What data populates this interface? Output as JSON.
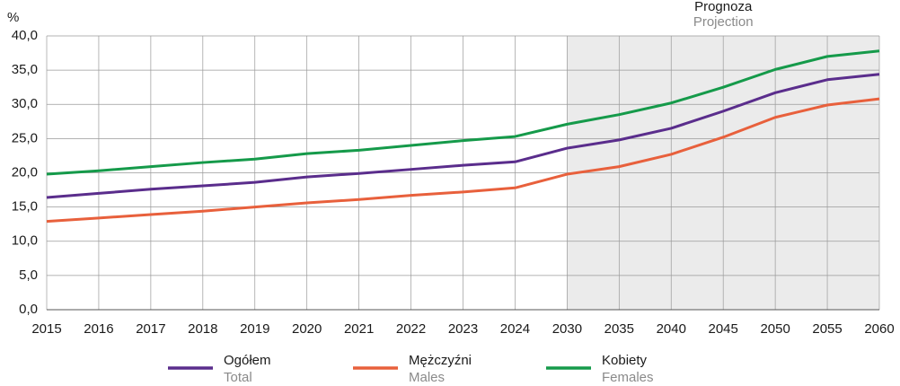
{
  "chart_data": {
    "type": "line",
    "y_label": "%",
    "categories": [
      "2015",
      "2016",
      "2017",
      "2018",
      "2019",
      "2020",
      "2021",
      "2022",
      "2023",
      "2024",
      "2030",
      "2035",
      "2040",
      "2045",
      "2050",
      "2055",
      "2060"
    ],
    "series": [
      {
        "name": "Ogółem",
        "name_en": "Total",
        "color": "#5a2d8c",
        "values": [
          16.4,
          17.0,
          17.6,
          18.1,
          18.6,
          19.4,
          19.9,
          20.5,
          21.1,
          21.6,
          23.6,
          24.8,
          26.5,
          29.0,
          31.7,
          33.6,
          34.4
        ]
      },
      {
        "name": "Mężczyźni",
        "name_en": "Males",
        "color": "#e8603c",
        "values": [
          12.9,
          13.4,
          13.9,
          14.4,
          15.0,
          15.6,
          16.1,
          16.7,
          17.2,
          17.8,
          19.8,
          20.9,
          22.7,
          25.2,
          28.1,
          29.9,
          30.8
        ]
      },
      {
        "name": "Kobiety",
        "name_en": "Females",
        "color": "#159a4a",
        "values": [
          19.8,
          20.3,
          20.9,
          21.5,
          22.0,
          22.8,
          23.3,
          24.0,
          24.7,
          25.3,
          27.1,
          28.5,
          30.2,
          32.5,
          35.1,
          37.0,
          37.8
        ]
      }
    ],
    "ylim": [
      0,
      40
    ],
    "yticks": [
      {
        "value": 0,
        "label": "0,0"
      },
      {
        "value": 5,
        "label": "5,0"
      },
      {
        "value": 10,
        "label": "10,0"
      },
      {
        "value": 15,
        "label": "15,0"
      },
      {
        "value": 20,
        "label": "20,0"
      },
      {
        "value": 25,
        "label": "25,0"
      },
      {
        "value": 30,
        "label": "30,0"
      },
      {
        "value": 35,
        "label": "35,0"
      },
      {
        "value": 40,
        "label": "40,0"
      }
    ],
    "grid": true,
    "projection": {
      "label": "Prognoza",
      "label_en": "Projection",
      "from": "2030",
      "color": "#ebebeb"
    }
  }
}
